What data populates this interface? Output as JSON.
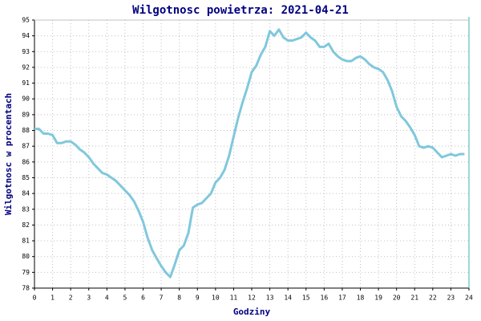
{
  "chart_data": {
    "type": "line",
    "title": "Wilgotnosc powietrza: 2021-04-21",
    "x_label": "Godziny",
    "y_label": "Wilgotnosc w procentach",
    "x": [
      0,
      0.25,
      0.5,
      0.75,
      1,
      1.25,
      1.5,
      1.75,
      2,
      2.25,
      2.5,
      2.75,
      3,
      3.25,
      3.5,
      3.75,
      4,
      4.25,
      4.5,
      4.75,
      5,
      5.25,
      5.5,
      5.75,
      6,
      6.25,
      6.5,
      6.75,
      7,
      7.25,
      7.5,
      7.75,
      8,
      8.25,
      8.5,
      8.75,
      9,
      9.25,
      9.5,
      9.75,
      10,
      10.25,
      10.5,
      10.75,
      11,
      11.25,
      11.5,
      11.75,
      12,
      12.25,
      12.5,
      12.75,
      13,
      13.25,
      13.5,
      13.75,
      14,
      14.25,
      14.5,
      14.75,
      15,
      15.25,
      15.5,
      15.75,
      16,
      16.25,
      16.5,
      16.75,
      17,
      17.25,
      17.5,
      17.75,
      18,
      18.25,
      18.5,
      18.75,
      19,
      19.25,
      19.5,
      19.75,
      20,
      20.25,
      20.5,
      20.75,
      21,
      21.25,
      21.5,
      21.75,
      22,
      22.25,
      22.5,
      22.75,
      23,
      23.25,
      23.5,
      23.75
    ],
    "values": [
      88.1,
      88.1,
      87.8,
      87.8,
      87.7,
      87.2,
      87.2,
      87.3,
      87.3,
      87.1,
      86.8,
      86.6,
      86.3,
      85.9,
      85.6,
      85.3,
      85.2,
      85.0,
      84.8,
      84.5,
      84.2,
      83.9,
      83.5,
      82.9,
      82.2,
      81.2,
      80.4,
      79.9,
      79.4,
      79.0,
      78.7,
      79.5,
      80.4,
      80.7,
      81.5,
      83.1,
      83.3,
      83.4,
      83.7,
      84.0,
      84.7,
      85.0,
      85.5,
      86.4,
      87.6,
      88.8,
      89.8,
      90.7,
      91.7,
      92.1,
      92.8,
      93.3,
      94.3,
      94.0,
      94.4,
      93.9,
      93.7,
      93.7,
      93.8,
      93.9,
      94.2,
      93.9,
      93.7,
      93.3,
      93.3,
      93.5,
      93.0,
      92.7,
      92.5,
      92.4,
      92.4,
      92.6,
      92.7,
      92.5,
      92.2,
      92.0,
      91.9,
      91.7,
      91.2,
      90.5,
      89.5,
      88.9,
      88.6,
      88.2,
      87.7,
      87.0,
      86.9,
      87.0,
      86.9,
      86.6,
      86.3,
      86.4,
      86.5,
      86.4,
      86.5,
      86.5
    ],
    "color": "#80c8dc",
    "xlim": [
      0,
      24
    ],
    "xticks": [
      0,
      1,
      2,
      3,
      4,
      5,
      6,
      7,
      8,
      9,
      10,
      11,
      12,
      13,
      14,
      15,
      16,
      17,
      18,
      19,
      20,
      21,
      22,
      23,
      24
    ],
    "ylim": [
      78,
      95
    ],
    "yticks": [
      78,
      79,
      80,
      81,
      82,
      83,
      84,
      85,
      86,
      87,
      88,
      89,
      90,
      91,
      92,
      93,
      94,
      95
    ],
    "grid": true
  }
}
